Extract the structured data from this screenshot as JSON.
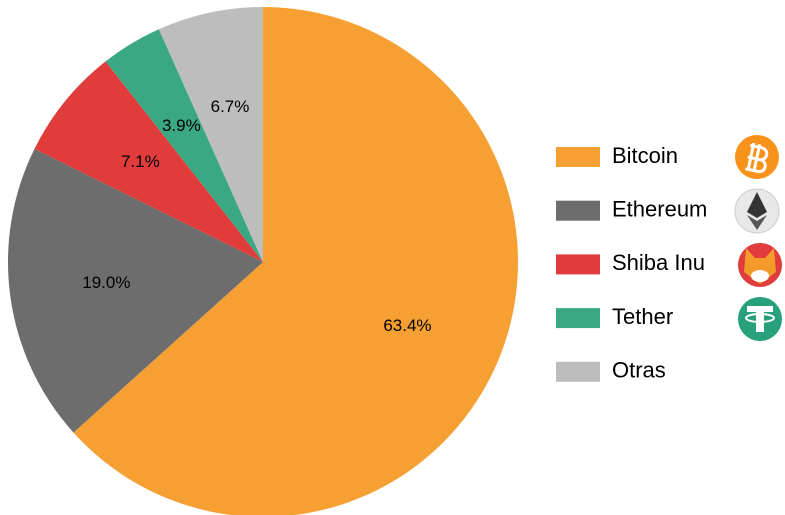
{
  "chart_data": {
    "type": "pie",
    "categories": [
      "Bitcoin",
      "Ethereum",
      "Shiba Inu",
      "Tether",
      "Otras"
    ],
    "values": [
      63.4,
      19.0,
      7.1,
      3.9,
      6.7
    ],
    "value_labels": [
      "63.4%",
      "19.0%",
      "7.1%",
      "3.9%",
      "6.7%"
    ],
    "colors": [
      "#f6a033",
      "#6d6d6d",
      "#e03c3c",
      "#3aa883",
      "#bdbdbd"
    ]
  }
}
